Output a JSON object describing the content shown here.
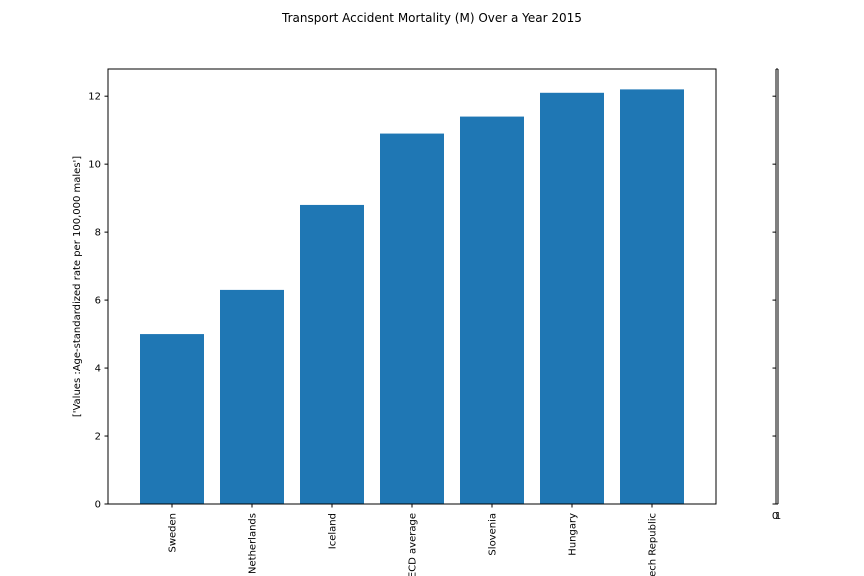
{
  "chart_data": {
    "type": "bar",
    "title": "Transport Accident Mortality (M) Over a Year 2015",
    "ylabel": "['Values :Age-standardized rate per 100,000 males']",
    "xlabel": "",
    "categories": [
      "Sweden",
      "Netherlands",
      "Iceland",
      "OECD average",
      "Slovenia",
      "Hungary",
      "Czech Republic"
    ],
    "category_labels_visible": [
      "Sweden",
      "Netherlands",
      "Iceland",
      "ECD average",
      "Slovenia",
      "Hungary",
      "ech Republic"
    ],
    "values": [
      5.0,
      6.3,
      8.8,
      10.9,
      11.4,
      12.1,
      12.2
    ],
    "ylim": [
      0,
      12.8
    ],
    "yticks": [
      0,
      2,
      4,
      6,
      8,
      10,
      12
    ],
    "bar_color": "#1f77b4",
    "grid": false,
    "legend": "none",
    "secondary_axis": {
      "tick_label": "0",
      "tick_label_2": "1"
    }
  }
}
